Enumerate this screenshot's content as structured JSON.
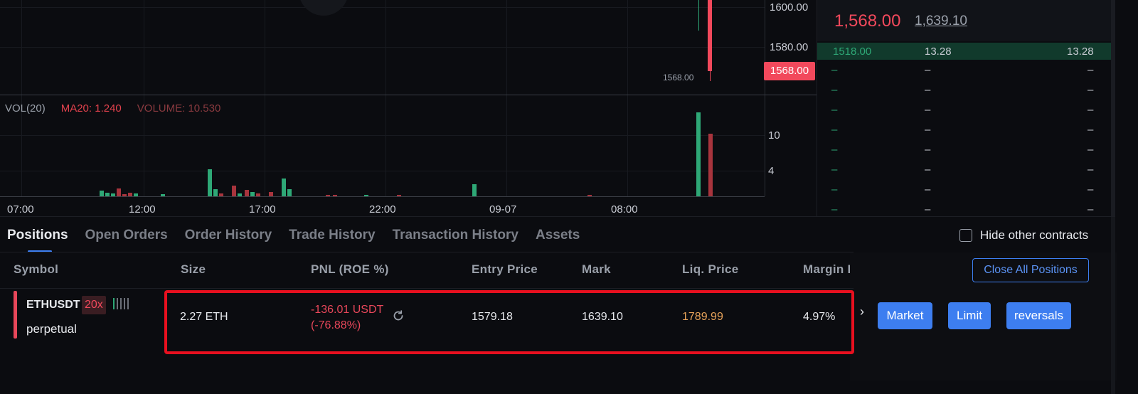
{
  "price_axis": {
    "labels": [
      "1600.00",
      "1580.00"
    ],
    "current_price_badge": "1568.00",
    "last_price_label": "1568.00"
  },
  "volume_pane": {
    "name": "VOL(20)",
    "ma": "MA20: 1.240",
    "volume": "VOLUME: 10.530",
    "axis_labels": [
      "10",
      "4"
    ]
  },
  "time_axis": {
    "labels": [
      "07:00",
      "12:00",
      "17:00",
      "22:00",
      "09-07",
      "08:00"
    ]
  },
  "orderbook": {
    "last_price": "1,568.00",
    "mark_price": "1,639.10",
    "best_bid": {
      "price": "1518.00",
      "size": "13.28",
      "total": "13.28"
    },
    "empty_rows": [
      "–",
      "–",
      "–",
      "–",
      "–",
      "–",
      "–",
      "–"
    ]
  },
  "tabs": [
    "Positions",
    "Open Orders",
    "Order History",
    "Trade History",
    "Transaction History",
    "Assets"
  ],
  "hide_other_contracts": "Hide other contracts",
  "close_all_label": "Close All Positions",
  "columns": [
    "Symbol",
    "Size",
    "PNL (ROE %)",
    "Entry Price",
    "Mark",
    "Liq. Price",
    "Margin I"
  ],
  "position": {
    "symbol": "ETHUSDT",
    "leverage": "20x",
    "type": "perpetual",
    "size": "2.27 ETH",
    "pnl": "-136.01 USDT",
    "roe": "(-76.88%)",
    "entry_price": "1579.18",
    "mark": "1639.10",
    "liq_price": "1789.99",
    "margin": "4.97%"
  },
  "actions": [
    "Market",
    "Limit",
    "reversals"
  ],
  "colors": {
    "accent": "#3d7ef0",
    "down": "#f2495c",
    "up": "#2ea876",
    "liq": "#e8a35a",
    "highlight": "#e8101f"
  },
  "icons": [
    "refresh-icon",
    "chevron-right-icon"
  ]
}
